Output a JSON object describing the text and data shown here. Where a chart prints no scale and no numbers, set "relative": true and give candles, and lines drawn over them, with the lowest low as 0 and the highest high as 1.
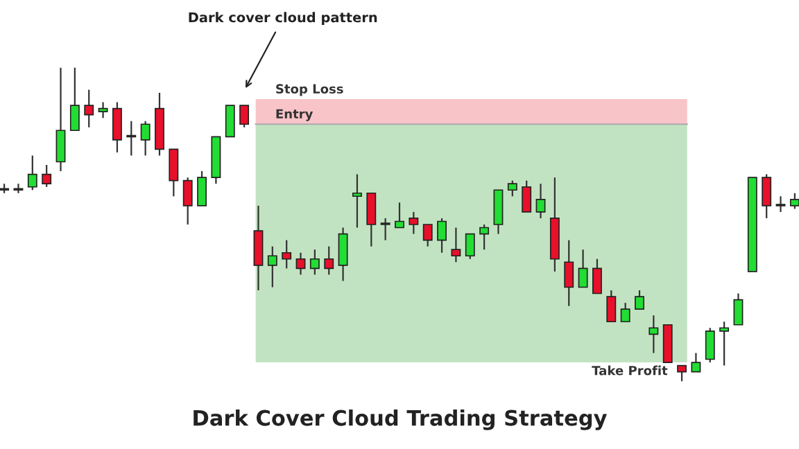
{
  "chart_data": {
    "type": "candlestick",
    "title": "Dark Cover Cloud Trading Strategy",
    "relative": true,
    "categories": [
      null,
      null,
      null,
      null,
      null,
      null,
      null,
      null,
      null,
      null,
      null,
      null,
      null,
      null,
      null,
      null,
      null,
      null,
      null,
      null,
      null,
      null,
      null,
      null,
      null,
      null,
      null,
      null,
      null,
      null,
      null,
      null,
      null,
      null,
      null,
      null,
      null,
      null,
      null,
      null,
      null,
      null,
      null,
      null,
      null,
      null,
      null,
      null,
      null,
      null,
      null,
      null,
      null,
      null,
      null,
      null,
      null
    ],
    "ohlc": [
      [
        0.61,
        0.63,
        0.6,
        0.61
      ],
      [
        0.61,
        0.63,
        0.6,
        0.61
      ],
      [
        0.62,
        0.72,
        0.61,
        0.66
      ],
      [
        0.66,
        0.69,
        0.62,
        0.63
      ],
      [
        0.7,
        1.0,
        0.67,
        0.8
      ],
      [
        0.8,
        1.0,
        0.8,
        0.88
      ],
      [
        0.88,
        0.93,
        0.81,
        0.85
      ],
      [
        0.86,
        0.89,
        0.84,
        0.87
      ],
      [
        0.87,
        0.89,
        0.73,
        0.77
      ],
      [
        0.78,
        0.83,
        0.72,
        0.78
      ],
      [
        0.77,
        0.83,
        0.72,
        0.82
      ],
      [
        0.87,
        0.92,
        0.72,
        0.74
      ],
      [
        0.74,
        0.74,
        0.59,
        0.64
      ],
      [
        0.64,
        0.65,
        0.5,
        0.56
      ],
      [
        0.56,
        0.67,
        0.56,
        0.65
      ],
      [
        0.65,
        0.78,
        0.63,
        0.78
      ],
      [
        0.78,
        0.88,
        0.78,
        0.88
      ],
      [
        0.88,
        0.88,
        0.81,
        0.82
      ],
      [
        0.48,
        0.56,
        0.29,
        0.37
      ],
      [
        0.37,
        0.43,
        0.3,
        0.4
      ],
      [
        0.41,
        0.45,
        0.36,
        0.39
      ],
      [
        0.39,
        0.41,
        0.34,
        0.36
      ],
      [
        0.36,
        0.42,
        0.34,
        0.39
      ],
      [
        0.39,
        0.43,
        0.34,
        0.36
      ],
      [
        0.37,
        0.49,
        0.32,
        0.47
      ],
      [
        0.59,
        0.66,
        0.49,
        0.6
      ],
      [
        0.6,
        0.6,
        0.43,
        0.5
      ],
      [
        0.5,
        0.52,
        0.45,
        0.5
      ],
      [
        0.49,
        0.57,
        0.49,
        0.51
      ],
      [
        0.52,
        0.54,
        0.47,
        0.5
      ],
      [
        0.5,
        0.5,
        0.43,
        0.45
      ],
      [
        0.45,
        0.52,
        0.41,
        0.51
      ],
      [
        0.42,
        0.49,
        0.38,
        0.4
      ],
      [
        0.4,
        0.47,
        0.39,
        0.47
      ],
      [
        0.47,
        0.5,
        0.42,
        0.49
      ],
      [
        0.5,
        0.61,
        0.47,
        0.61
      ],
      [
        0.61,
        0.64,
        0.59,
        0.63
      ],
      [
        0.62,
        0.64,
        0.54,
        0.54
      ],
      [
        0.54,
        0.63,
        0.52,
        0.58
      ],
      [
        0.52,
        0.65,
        0.35,
        0.39
      ],
      [
        0.38,
        0.45,
        0.24,
        0.3
      ],
      [
        0.3,
        0.42,
        0.3,
        0.36
      ],
      [
        0.36,
        0.39,
        0.28,
        0.28
      ],
      [
        0.27,
        0.29,
        0.19,
        0.19
      ],
      [
        0.19,
        0.25,
        0.19,
        0.23
      ],
      [
        0.23,
        0.29,
        0.23,
        0.27
      ],
      [
        0.15,
        0.21,
        0.09,
        0.17
      ],
      [
        0.18,
        0.18,
        0.06,
        0.06
      ],
      [
        0.05,
        0.05,
        0.0,
        0.03
      ],
      [
        0.03,
        0.09,
        0.03,
        0.06
      ],
      [
        0.07,
        0.17,
        0.06,
        0.16
      ],
      [
        0.16,
        0.19,
        0.05,
        0.17
      ],
      [
        0.18,
        0.28,
        0.18,
        0.26
      ],
      [
        0.35,
        0.65,
        0.35,
        0.65
      ],
      [
        0.65,
        0.66,
        0.52,
        0.56
      ],
      [
        0.56,
        0.59,
        0.54,
        0.56
      ],
      [
        0.56,
        0.6,
        0.55,
        0.58
      ]
    ],
    "colors": [
      "#555555",
      "#555555",
      "#22dd33",
      "#e8102a",
      "#22dd33",
      "#22dd33",
      "#e8102a",
      "#22dd33",
      "#e8102a",
      "#555555",
      "#22dd33",
      "#e8102a",
      "#e8102a",
      "#e8102a",
      "#22dd33",
      "#22dd33",
      "#22dd33",
      "#e8102a",
      "#e8102a",
      "#22dd33",
      "#e8102a",
      "#e8102a",
      "#22dd33",
      "#e8102a",
      "#22dd33",
      "#22dd33",
      "#e8102a",
      "#555555",
      "#22dd33",
      "#e8102a",
      "#e8102a",
      "#22dd33",
      "#e8102a",
      "#22dd33",
      "#22dd33",
      "#22dd33",
      "#22dd33",
      "#e8102a",
      "#22dd33",
      "#e8102a",
      "#e8102a",
      "#22dd33",
      "#e8102a",
      "#e8102a",
      "#22dd33",
      "#22dd33",
      "#22dd33",
      "#e8102a",
      "#e8102a",
      "#22dd33",
      "#22dd33",
      "#22dd33",
      "#22dd33",
      "#22dd33",
      "#e8102a",
      "#555555",
      "#22dd33"
    ],
    "bands": [
      {
        "axis": "y",
        "from": 0.82,
        "to": 0.9,
        "label": "Stop Loss",
        "color": "#f8c4c8"
      },
      {
        "axis": "y",
        "from": 0.06,
        "to": 0.82,
        "label": "Take Profit",
        "color": "#c2e3c2"
      }
    ],
    "ref_lines": [
      {
        "axis": "y",
        "value": 0.82,
        "label": "Entry",
        "color": "#aaaaaa"
      }
    ],
    "annotations": [
      "Dark cover cloud pattern"
    ]
  }
}
